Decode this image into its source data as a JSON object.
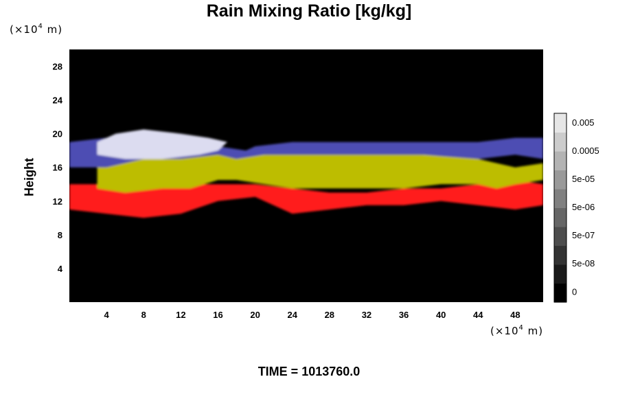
{
  "chart_data": {
    "type": "heatmap",
    "title": "Rain Mixing Ratio [kg/kg]",
    "ylabel": "Height",
    "y_unit_prefix": "(×10",
    "y_unit_exp": "4",
    "y_unit_suffix": " m)",
    "x_unit_prefix": "(×10",
    "x_unit_exp": "4",
    "x_unit_suffix": " m)",
    "x_ticks": [
      "4",
      "8",
      "12",
      "16",
      "20",
      "24",
      "28",
      "32",
      "36",
      "40",
      "44",
      "48"
    ],
    "y_ticks": [
      "4",
      "8",
      "12",
      "16",
      "20",
      "24",
      "28"
    ],
    "xlim": [
      0,
      51
    ],
    "ylim": [
      0,
      30
    ],
    "colorbar": {
      "labels": [
        "0.005",
        "0.0005",
        "5e-05",
        "5e-06",
        "5e-07",
        "5e-08",
        "0"
      ],
      "scale": "log",
      "colors_bottom_to_top": [
        "#000000",
        "#1a1a1a",
        "#333333",
        "#4d4d4d",
        "#666666",
        "#808080",
        "#999999",
        "#b3b3b3",
        "#cccccc",
        "#e6e6e6"
      ]
    },
    "layers": [
      {
        "color": "#ff1a1a",
        "points": [
          [
            0,
            11
          ],
          [
            4,
            10.5
          ],
          [
            8,
            10
          ],
          [
            12,
            10.5
          ],
          [
            16,
            12
          ],
          [
            20,
            12.5
          ],
          [
            24,
            10.5
          ],
          [
            28,
            11
          ],
          [
            32,
            11.5
          ],
          [
            36,
            11.5
          ],
          [
            40,
            12
          ],
          [
            44,
            11.5
          ],
          [
            48,
            11
          ],
          [
            51,
            11.5
          ],
          [
            51,
            14
          ],
          [
            48,
            14.5
          ],
          [
            44,
            14
          ],
          [
            40,
            13.5
          ],
          [
            36,
            13.5
          ],
          [
            32,
            13
          ],
          [
            28,
            13
          ],
          [
            24,
            13.5
          ],
          [
            20,
            14
          ],
          [
            16,
            14
          ],
          [
            12,
            14
          ],
          [
            8,
            13.5
          ],
          [
            4,
            14
          ],
          [
            0,
            14
          ]
        ]
      },
      {
        "color": "#bdbd00",
        "points": [
          [
            3,
            13.5
          ],
          [
            6,
            13
          ],
          [
            10,
            13.5
          ],
          [
            13,
            13.5
          ],
          [
            16,
            14.5
          ],
          [
            18,
            14.5
          ],
          [
            21,
            14
          ],
          [
            24,
            13.5
          ],
          [
            28,
            13.5
          ],
          [
            32,
            13.5
          ],
          [
            36,
            13.5
          ],
          [
            40,
            14
          ],
          [
            44,
            14
          ],
          [
            46,
            13.5
          ],
          [
            48,
            14
          ],
          [
            51,
            14.5
          ],
          [
            51,
            16.5
          ],
          [
            48,
            16
          ],
          [
            44,
            17
          ],
          [
            40,
            17.5
          ],
          [
            36,
            17.5
          ],
          [
            32,
            17.5
          ],
          [
            28,
            17.5
          ],
          [
            24,
            17.5
          ],
          [
            20,
            17.5
          ],
          [
            18,
            17
          ],
          [
            16,
            17.5
          ],
          [
            12,
            17.5
          ],
          [
            8,
            18
          ],
          [
            4,
            17.5
          ],
          [
            3,
            16.5
          ]
        ]
      },
      {
        "color": "#4d4db3",
        "points": [
          [
            0,
            16
          ],
          [
            4,
            16
          ],
          [
            8,
            17
          ],
          [
            12,
            17
          ],
          [
            16,
            17.5
          ],
          [
            18,
            17
          ],
          [
            21,
            17.5
          ],
          [
            26,
            17.5
          ],
          [
            32,
            17.5
          ],
          [
            38,
            17.5
          ],
          [
            44,
            17
          ],
          [
            48,
            17.5
          ],
          [
            51,
            17
          ],
          [
            51,
            19.5
          ],
          [
            48,
            19.5
          ],
          [
            44,
            19
          ],
          [
            40,
            19
          ],
          [
            36,
            19
          ],
          [
            32,
            19
          ],
          [
            28,
            19
          ],
          [
            24,
            19
          ],
          [
            20,
            18.5
          ],
          [
            19,
            18
          ],
          [
            16,
            18.5
          ],
          [
            12,
            19.5
          ],
          [
            8,
            20
          ],
          [
            4,
            19.5
          ],
          [
            0,
            19
          ]
        ]
      },
      {
        "color": "#dcdcf0",
        "points": [
          [
            3,
            17.5
          ],
          [
            6,
            17
          ],
          [
            10,
            17
          ],
          [
            14,
            17.5
          ],
          [
            16,
            18
          ],
          [
            17,
            19
          ],
          [
            15,
            19.5
          ],
          [
            12,
            20
          ],
          [
            8,
            20.5
          ],
          [
            5,
            20
          ],
          [
            3,
            19
          ]
        ]
      }
    ]
  },
  "time_label": "TIME = 1013760.0"
}
